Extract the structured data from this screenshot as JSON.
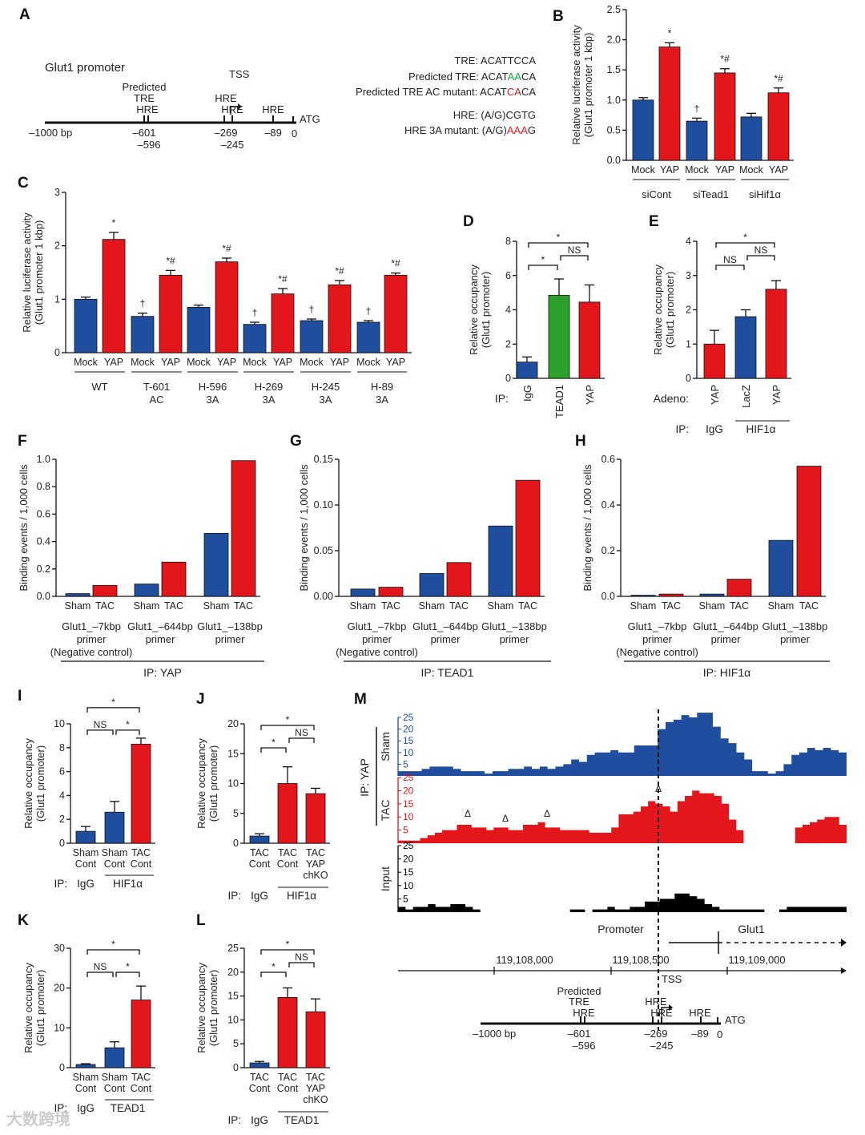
{
  "panel_letters": [
    "A",
    "B",
    "C",
    "D",
    "E",
    "F",
    "G",
    "H",
    "I",
    "J",
    "K",
    "L",
    "M"
  ],
  "panel_a": {
    "title": "Glut1 promoter",
    "predicted": "Predicted",
    "tre": "TRE",
    "hre": "HRE",
    "tss": "TSS",
    "bp_start": "–1000 bp",
    "p601": "–601",
    "p596": "–596",
    "p269": "–269",
    "p245": "–245",
    "p89": "–89",
    "zero": "0",
    "atg": "ATG",
    "seq_tre": "TRE: ACATTCCA",
    "seq_pred_pre": "Predicted TRE: ACAT",
    "seq_pred_hl": "AA",
    "seq_pred_post": "CA",
    "seq_mut_pre": "Predicted TRE AC mutant: ACAT",
    "seq_mut_hl": "CA",
    "seq_mut_post": "CA",
    "seq_hre": "HRE: (A/G)CGTG",
    "seq_hre_mut_pre": "HRE 3A mutant: (A/G)",
    "seq_hre_mut_hl": "AAA",
    "seq_hre_mut_post": "G"
  },
  "colors": {
    "blue": "#1f4e9e",
    "red": "#e3161b",
    "green": "#2ca02c",
    "black": "#000000"
  },
  "chart_data": [
    {
      "id": "B",
      "type": "bar",
      "ylabel": "Relative luciferase activity\n(Glut1 promoter 1 kbp)",
      "ylim": [
        0,
        2.5
      ],
      "yticks": [
        "0.0",
        "0.5",
        "1.0",
        "1.5",
        "2.0",
        "2.5"
      ],
      "bars": [
        {
          "label": "Mock",
          "value": 1.0,
          "err": 0.04,
          "color": "blue",
          "mark": ""
        },
        {
          "label": "YAP",
          "value": 1.88,
          "err": 0.07,
          "color": "red",
          "mark": "*"
        },
        {
          "label": "Mock",
          "value": 0.65,
          "err": 0.05,
          "color": "blue",
          "mark": "†"
        },
        {
          "label": "YAP",
          "value": 1.45,
          "err": 0.07,
          "color": "red",
          "mark": "*#"
        },
        {
          "label": "Mock",
          "value": 0.72,
          "err": 0.06,
          "color": "blue",
          "mark": ""
        },
        {
          "label": "YAP",
          "value": 1.12,
          "err": 0.08,
          "color": "red",
          "mark": "*#"
        }
      ],
      "groups": [
        {
          "label": "siCont",
          "span": [
            0,
            1
          ]
        },
        {
          "label": "siTead1",
          "span": [
            2,
            3
          ]
        },
        {
          "label": "siHif1α",
          "span": [
            4,
            5
          ]
        }
      ]
    },
    {
      "id": "C",
      "type": "bar",
      "ylabel": "Relative luciferase activity\n(Glut1 promoter 1 kbp)",
      "ylim": [
        0,
        3
      ],
      "yticks": [
        "0",
        "1",
        "2",
        "3"
      ],
      "bars": [
        {
          "label": "Mock",
          "value": 1.0,
          "err": 0.04,
          "color": "blue",
          "mark": ""
        },
        {
          "label": "YAP",
          "value": 2.12,
          "err": 0.13,
          "color": "red",
          "mark": "*"
        },
        {
          "label": "Mock",
          "value": 0.68,
          "err": 0.06,
          "color": "blue",
          "mark": "†"
        },
        {
          "label": "YAP",
          "value": 1.45,
          "err": 0.09,
          "color": "red",
          "mark": "*#"
        },
        {
          "label": "Mock",
          "value": 0.85,
          "err": 0.04,
          "color": "blue",
          "mark": ""
        },
        {
          "label": "YAP",
          "value": 1.7,
          "err": 0.07,
          "color": "red",
          "mark": "*#"
        },
        {
          "label": "Mock",
          "value": 0.53,
          "err": 0.04,
          "color": "blue",
          "mark": "†"
        },
        {
          "label": "YAP",
          "value": 1.1,
          "err": 0.1,
          "color": "red",
          "mark": "*#"
        },
        {
          "label": "Mock",
          "value": 0.6,
          "err": 0.03,
          "color": "blue",
          "mark": "†"
        },
        {
          "label": "YAP",
          "value": 1.27,
          "err": 0.08,
          "color": "red",
          "mark": "*#"
        },
        {
          "label": "Mock",
          "value": 0.57,
          "err": 0.03,
          "color": "blue",
          "mark": "†"
        },
        {
          "label": "YAP",
          "value": 1.45,
          "err": 0.04,
          "color": "red",
          "mark": "*#"
        }
      ],
      "groups": [
        {
          "label": "WT",
          "span": [
            0,
            1
          ]
        },
        {
          "label": "T-601\nAC",
          "span": [
            2,
            3
          ]
        },
        {
          "label": "H-596\n3A",
          "span": [
            4,
            5
          ]
        },
        {
          "label": "H-269\n3A",
          "span": [
            6,
            7
          ]
        },
        {
          "label": "H-245\n3A",
          "span": [
            8,
            9
          ]
        },
        {
          "label": "H-89\n3A",
          "span": [
            10,
            11
          ]
        }
      ]
    },
    {
      "id": "D",
      "type": "bar",
      "ylabel": "Relative occupancy\n(Glut1 promoter)",
      "ylim": [
        0,
        8
      ],
      "yticks": [
        "0",
        "2",
        "4",
        "6",
        "8"
      ],
      "rotate": true,
      "prefix": "IP:",
      "bars": [
        {
          "label": "IgG",
          "value": 0.95,
          "err": 0.3,
          "color": "blue"
        },
        {
          "label": "TEAD1",
          "value": 4.85,
          "err": 0.95,
          "color": "green"
        },
        {
          "label": "YAP",
          "value": 4.45,
          "err": 1.0,
          "color": "red"
        }
      ],
      "brackets": [
        {
          "from": 0,
          "to": 1,
          "label": "*"
        },
        {
          "from": 1,
          "to": 2,
          "label": "NS"
        },
        {
          "from": 0,
          "to": 2,
          "label": "*"
        }
      ]
    },
    {
      "id": "E",
      "type": "bar",
      "ylabel": "Relative occupancy\n(Glut1 promoter)",
      "ylim": [
        0,
        4
      ],
      "yticks": [
        "0",
        "1",
        "2",
        "3",
        "4"
      ],
      "rotate": true,
      "prefix": "Adeno:",
      "bars": [
        {
          "label": "YAP",
          "value": 1.0,
          "err": 0.4,
          "color": "red"
        },
        {
          "label": "LacZ",
          "value": 1.8,
          "err": 0.2,
          "color": "blue"
        },
        {
          "label": "YAP",
          "value": 2.6,
          "err": 0.25,
          "color": "red"
        }
      ],
      "brackets": [
        {
          "from": 0,
          "to": 1,
          "label": "NS"
        },
        {
          "from": 1,
          "to": 2,
          "label": "NS"
        },
        {
          "from": 0,
          "to": 2,
          "label": "*"
        }
      ],
      "ip_label": "IP:",
      "ip_groups": [
        "IgG",
        "HIF1α"
      ]
    },
    {
      "id": "F",
      "type": "bar",
      "ylabel": "Binding events / 1,000 cells",
      "ylim": [
        0,
        1.0
      ],
      "yticks": [
        "0.0",
        "0.2",
        "0.4",
        "0.6",
        "0.8",
        "1.0"
      ],
      "bars": [
        {
          "label": "Sham",
          "value": 0.02,
          "color": "blue"
        },
        {
          "label": "TAC",
          "value": 0.08,
          "color": "red"
        },
        {
          "label": "Sham",
          "value": 0.09,
          "color": "blue"
        },
        {
          "label": "TAC",
          "value": 0.25,
          "color": "red"
        },
        {
          "label": "Sham",
          "value": 0.46,
          "color": "blue"
        },
        {
          "label": "TAC",
          "value": 0.99,
          "color": "red"
        }
      ],
      "groups": [
        {
          "label": "Glut1_–7kbp\nprimer\n(Negative control)",
          "span": [
            0,
            1
          ]
        },
        {
          "label": "Glut1_–644bp\nprimer",
          "span": [
            2,
            3
          ]
        },
        {
          "label": "Glut1_–138bp\nprimer",
          "span": [
            4,
            5
          ]
        }
      ],
      "ip": "IP: YAP"
    },
    {
      "id": "G",
      "type": "bar",
      "ylabel": "Binding events / 1,000 cells",
      "ylim": [
        0,
        0.15
      ],
      "yticks": [
        "0.00",
        "0.05",
        "0.10",
        "0.15"
      ],
      "bars": [
        {
          "label": "Sham",
          "value": 0.008,
          "color": "blue"
        },
        {
          "label": "TAC",
          "value": 0.01,
          "color": "red"
        },
        {
          "label": "Sham",
          "value": 0.025,
          "color": "blue"
        },
        {
          "label": "TAC",
          "value": 0.037,
          "color": "red"
        },
        {
          "label": "Sham",
          "value": 0.077,
          "color": "blue"
        },
        {
          "label": "TAC",
          "value": 0.127,
          "color": "red"
        }
      ],
      "groups": [
        {
          "label": "Glut1_–7kbp\nprimer\n(Negative control)",
          "span": [
            0,
            1
          ]
        },
        {
          "label": "Glut1_–644bp\nprimer",
          "span": [
            2,
            3
          ]
        },
        {
          "label": "Glut1_–138bp\nprimer",
          "span": [
            4,
            5
          ]
        }
      ],
      "ip": "IP: TEAD1"
    },
    {
      "id": "H",
      "type": "bar",
      "ylabel": "Binding events / 1,000 cells",
      "ylim": [
        0,
        0.6
      ],
      "yticks": [
        "0.0",
        "0.2",
        "0.4",
        "0.6"
      ],
      "bars": [
        {
          "label": "Sham",
          "value": 0.005,
          "color": "blue"
        },
        {
          "label": "TAC",
          "value": 0.01,
          "color": "red"
        },
        {
          "label": "Sham",
          "value": 0.01,
          "color": "blue"
        },
        {
          "label": "TAC",
          "value": 0.075,
          "color": "red"
        },
        {
          "label": "Sham",
          "value": 0.245,
          "color": "blue"
        },
        {
          "label": "TAC",
          "value": 0.57,
          "color": "red"
        }
      ],
      "groups": [
        {
          "label": "Glut1_–7kbp\nprimer\n(Negative control)",
          "span": [
            0,
            1
          ]
        },
        {
          "label": "Glut1_–644bp\nprimer",
          "span": [
            2,
            3
          ]
        },
        {
          "label": "Glut1_–138bp\nprimer",
          "span": [
            4,
            5
          ]
        }
      ],
      "ip": "IP: HIF1α"
    },
    {
      "id": "I",
      "type": "bar",
      "ylabel": "Relative occupancy\n(Glut1 promoter)",
      "ylim": [
        0,
        10
      ],
      "yticks": [
        "0",
        "2",
        "4",
        "6",
        "8",
        "10"
      ],
      "bars": [
        {
          "label": "Sham\nCont",
          "value": 1.0,
          "err": 0.4,
          "color": "blue"
        },
        {
          "label": "Sham\nCont",
          "value": 2.6,
          "err": 0.9,
          "color": "blue"
        },
        {
          "label": "TAC\nCont",
          "value": 8.3,
          "err": 0.5,
          "color": "red"
        }
      ],
      "brackets": [
        {
          "from": 0,
          "to": 1,
          "label": "NS"
        },
        {
          "from": 1,
          "to": 2,
          "label": "*"
        },
        {
          "from": 0,
          "to": 2,
          "label": "*"
        }
      ],
      "ip_label": "IP:",
      "ip_groups": [
        "IgG",
        "HIF1α"
      ]
    },
    {
      "id": "J",
      "type": "bar",
      "ylabel": "Relative occupancy\n(Glut1 promoter)",
      "ylim": [
        0,
        20
      ],
      "yticks": [
        "0",
        "5",
        "10",
        "15",
        "20"
      ],
      "bars": [
        {
          "label": "TAC\nCont",
          "value": 1.2,
          "err": 0.4,
          "color": "blue"
        },
        {
          "label": "TAC\nCont",
          "value": 10.0,
          "err": 2.8,
          "color": "red"
        },
        {
          "label": "TAC\nYAP\nchKO",
          "value": 8.3,
          "err": 0.9,
          "color": "red"
        }
      ],
      "brackets": [
        {
          "from": 0,
          "to": 1,
          "label": "*"
        },
        {
          "from": 1,
          "to": 2,
          "label": "NS"
        },
        {
          "from": 0,
          "to": 2,
          "label": "*"
        }
      ],
      "ip_label": "IP:",
      "ip_groups": [
        "IgG",
        "HIF1α"
      ]
    },
    {
      "id": "K",
      "type": "bar",
      "ylabel": "Relative occupancy\n(Glut1 promoter)",
      "ylim": [
        0,
        30
      ],
      "yticks": [
        "0",
        "10",
        "20",
        "30"
      ],
      "bars": [
        {
          "label": "Sham\nCont",
          "value": 0.8,
          "err": 0.2,
          "color": "blue"
        },
        {
          "label": "Sham\nCont",
          "value": 5.0,
          "err": 1.5,
          "color": "blue"
        },
        {
          "label": "TAC\nCont",
          "value": 17.0,
          "err": 3.5,
          "color": "red"
        }
      ],
      "brackets": [
        {
          "from": 0,
          "to": 1,
          "label": "NS"
        },
        {
          "from": 1,
          "to": 2,
          "label": "*"
        },
        {
          "from": 0,
          "to": 2,
          "label": "*"
        }
      ],
      "ip_label": "IP:",
      "ip_groups": [
        "IgG",
        "TEAD1"
      ]
    },
    {
      "id": "L",
      "type": "bar",
      "ylabel": "Relative occupancy\n(Glut1 promoter)",
      "ylim": [
        0,
        25
      ],
      "yticks": [
        "0",
        "5",
        "10",
        "15",
        "20",
        "25"
      ],
      "bars": [
        {
          "label": "TAC\nCont",
          "value": 1.0,
          "err": 0.3,
          "color": "blue"
        },
        {
          "label": "TAC\nCont",
          "value": 14.7,
          "err": 2.0,
          "color": "red"
        },
        {
          "label": "TAC\nYAP\nchKO",
          "value": 11.7,
          "err": 2.7,
          "color": "red"
        }
      ],
      "brackets": [
        {
          "from": 0,
          "to": 1,
          "label": "*"
        },
        {
          "from": 1,
          "to": 2,
          "label": "NS"
        },
        {
          "from": 0,
          "to": 2,
          "label": "*"
        }
      ],
      "ip_label": "IP:",
      "ip_groups": [
        "IgG",
        "TEAD1"
      ]
    },
    {
      "id": "M",
      "type": "area",
      "ylim": [
        0,
        25
      ],
      "yticks": [
        "5",
        "10",
        "15",
        "20",
        "25"
      ],
      "ip": "IP: YAP",
      "tracks": [
        {
          "name": "Sham",
          "color": "blue",
          "values": [
            2,
            2,
            2,
            3,
            4,
            4,
            4,
            3,
            2,
            2,
            2,
            1,
            2,
            2,
            3,
            3,
            4,
            3,
            4,
            3,
            4,
            5,
            7,
            6,
            9,
            10,
            10,
            11,
            10,
            10,
            13,
            13,
            13,
            20,
            23,
            24,
            26,
            25,
            27,
            27,
            21,
            16,
            14,
            10,
            7,
            2,
            2,
            1,
            2,
            5,
            9,
            10,
            12,
            11,
            12,
            11,
            10
          ]
        },
        {
          "name": "TAC",
          "color": "red",
          "values": [
            1,
            1,
            1,
            2,
            3,
            4,
            5,
            5,
            7,
            7,
            6,
            6,
            5,
            6,
            6,
            5,
            5,
            7,
            7,
            8,
            6,
            6,
            5,
            5,
            5,
            5,
            4,
            4,
            4,
            6,
            11,
            11,
            12,
            14,
            16,
            15,
            14,
            12,
            16,
            18,
            20,
            19,
            19,
            18,
            15,
            9,
            5,
            0,
            0,
            0,
            0,
            0,
            0,
            0,
            6,
            7,
            8,
            9,
            10,
            10,
            7
          ]
        },
        {
          "name": "Input",
          "color": "black",
          "values": [
            2,
            1,
            2,
            2,
            3,
            2,
            2,
            3,
            3,
            2,
            1,
            0,
            0,
            0,
            0,
            0,
            0,
            0,
            0,
            0,
            0,
            0,
            0,
            1,
            1,
            0,
            1,
            1,
            2,
            1,
            1,
            2,
            2,
            4,
            4,
            5,
            5,
            7,
            7,
            6,
            5,
            3,
            2,
            1,
            1,
            1,
            1,
            1,
            1,
            0,
            0,
            1,
            2,
            2,
            2,
            2,
            2,
            2,
            2,
            2
          ]
        }
      ],
      "annotations": "Δ",
      "promoter": "Promoter",
      "gene": "Glut1",
      "coords": [
        "119,108,000",
        "119,108,500",
        "119,109,000"
      ]
    }
  ],
  "watermark": "大数跨境"
}
